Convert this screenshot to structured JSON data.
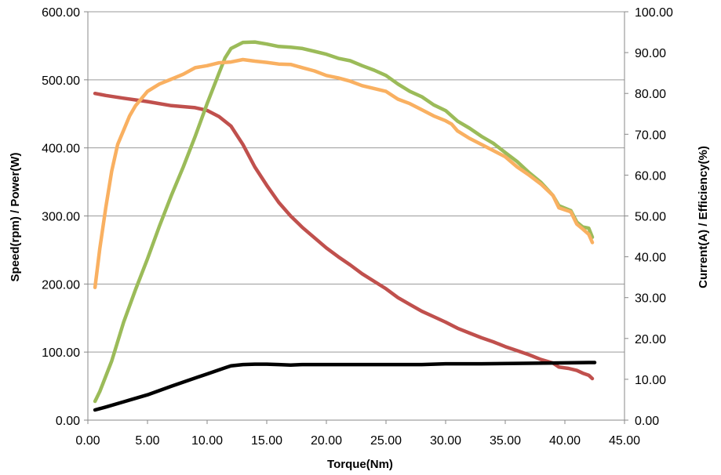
{
  "chart_data": {
    "type": "line",
    "xlabel": "Torque(Nm)",
    "ylabel_left": "Speed(rpm) / Power(W)",
    "ylabel_right": "Current(A) / Efficiency(%)",
    "xlim": [
      0,
      45
    ],
    "ylim_left": [
      0,
      600
    ],
    "ylim_right": [
      0,
      100
    ],
    "x_ticks": [
      "0.00",
      "5.00",
      "10.00",
      "15.00",
      "20.00",
      "25.00",
      "30.00",
      "35.00",
      "40.00",
      "45.00"
    ],
    "y_left_ticks": [
      "0.00",
      "100.00",
      "200.00",
      "300.00",
      "400.00",
      "500.00",
      "600.00"
    ],
    "y_right_ticks": [
      "0.00",
      "10.00",
      "20.00",
      "30.00",
      "40.00",
      "50.00",
      "60.00",
      "70.00",
      "80.00",
      "90.00",
      "100.00"
    ],
    "grid": "horizontal",
    "series": [
      {
        "color": "#c0504d",
        "axis": "left",
        "points": [
          [
            0.6,
            480
          ],
          [
            1.5,
            477
          ],
          [
            3,
            473
          ],
          [
            5,
            468
          ],
          [
            7,
            462
          ],
          [
            9,
            459
          ],
          [
            10,
            455
          ],
          [
            11,
            446
          ],
          [
            12,
            432
          ],
          [
            13,
            405
          ],
          [
            14,
            372
          ],
          [
            15,
            345
          ],
          [
            16,
            320
          ],
          [
            17,
            300
          ],
          [
            18,
            283
          ],
          [
            19,
            268
          ],
          [
            20,
            253
          ],
          [
            21,
            240
          ],
          [
            22,
            228
          ],
          [
            23,
            215
          ],
          [
            24,
            204
          ],
          [
            25,
            193
          ],
          [
            26,
            180
          ],
          [
            27,
            170
          ],
          [
            28,
            160
          ],
          [
            29,
            152
          ],
          [
            30,
            144
          ],
          [
            31,
            135
          ],
          [
            32,
            128
          ],
          [
            33,
            121
          ],
          [
            34,
            115
          ],
          [
            35,
            108
          ],
          [
            36,
            102
          ],
          [
            37,
            96
          ],
          [
            38,
            89
          ],
          [
            39,
            84
          ],
          [
            39.5,
            78
          ],
          [
            40.3,
            76
          ],
          [
            41,
            73
          ],
          [
            41.5,
            69
          ],
          [
            42,
            66
          ],
          [
            42.3,
            61
          ]
        ]
      },
      {
        "color": "#9bbb59",
        "axis": "right",
        "points": [
          [
            0.6,
            4.6
          ],
          [
            1,
            7
          ],
          [
            2,
            14.5
          ],
          [
            3,
            24
          ],
          [
            4,
            32
          ],
          [
            5,
            39.5
          ],
          [
            6,
            47.5
          ],
          [
            7,
            55
          ],
          [
            8,
            62
          ],
          [
            9,
            69.5
          ],
          [
            10,
            77.5
          ],
          [
            11,
            85
          ],
          [
            11.5,
            88.7
          ],
          [
            12,
            91
          ],
          [
            13,
            92.5
          ],
          [
            14,
            92.6
          ],
          [
            15,
            92.1
          ],
          [
            16,
            91.5
          ],
          [
            17,
            91.3
          ],
          [
            18,
            91
          ],
          [
            19,
            90.3
          ],
          [
            20,
            89.6
          ],
          [
            21,
            88.6
          ],
          [
            22,
            88
          ],
          [
            23,
            86.8
          ],
          [
            24,
            85.7
          ],
          [
            25,
            84.4
          ],
          [
            26,
            82.3
          ],
          [
            27,
            80.5
          ],
          [
            28,
            79.2
          ],
          [
            29,
            77.2
          ],
          [
            30,
            75.8
          ],
          [
            31,
            73.2
          ],
          [
            32,
            71.5
          ],
          [
            33,
            69.5
          ],
          [
            34,
            67.8
          ],
          [
            35,
            65.5
          ],
          [
            36,
            63.3
          ],
          [
            37,
            60.6
          ],
          [
            38,
            58.2
          ],
          [
            39,
            55
          ],
          [
            39.5,
            52.5
          ],
          [
            40.5,
            51.3
          ],
          [
            41,
            48.5
          ],
          [
            41.5,
            47.3
          ],
          [
            42,
            47
          ],
          [
            42.3,
            44.8
          ]
        ]
      },
      {
        "color": "#f9b061",
        "axis": "right",
        "points": [
          [
            0.6,
            32.5
          ],
          [
            1,
            42
          ],
          [
            1.5,
            52
          ],
          [
            2,
            61
          ],
          [
            2.5,
            67.5
          ],
          [
            3,
            71
          ],
          [
            3.5,
            74.5
          ],
          [
            4,
            77
          ],
          [
            5,
            80.5
          ],
          [
            6,
            82.3
          ],
          [
            7,
            83.5
          ],
          [
            8,
            84.7
          ],
          [
            9,
            86.3
          ],
          [
            10,
            86.8
          ],
          [
            11,
            87.5
          ],
          [
            12,
            87.7
          ],
          [
            13,
            88.3
          ],
          [
            14,
            87.9
          ],
          [
            15,
            87.6
          ],
          [
            16,
            87.2
          ],
          [
            17,
            87.1
          ],
          [
            18,
            86.3
          ],
          [
            19,
            85.5
          ],
          [
            20,
            84.4
          ],
          [
            21,
            83.8
          ],
          [
            22,
            83
          ],
          [
            23,
            81.9
          ],
          [
            24,
            81.2
          ],
          [
            25,
            80.5
          ],
          [
            26,
            78.6
          ],
          [
            27,
            77.5
          ],
          [
            28,
            76
          ],
          [
            29,
            74.5
          ],
          [
            30,
            73.3
          ],
          [
            30.5,
            72.5
          ],
          [
            31,
            70.8
          ],
          [
            32,
            69
          ],
          [
            33,
            67.5
          ],
          [
            34,
            66
          ],
          [
            35,
            64.5
          ],
          [
            36,
            62
          ],
          [
            37,
            60
          ],
          [
            38,
            57.8
          ],
          [
            39,
            55
          ],
          [
            39.5,
            52
          ],
          [
            40.5,
            51
          ],
          [
            41,
            48
          ],
          [
            41.5,
            46.8
          ],
          [
            42,
            45.5
          ],
          [
            42.3,
            43.5
          ]
        ]
      },
      {
        "color": "#000000",
        "axis": "right",
        "points": [
          [
            0.6,
            2.5
          ],
          [
            1.5,
            3.2
          ],
          [
            3,
            4.5
          ],
          [
            5,
            6.2
          ],
          [
            7,
            8.3
          ],
          [
            9,
            10.3
          ],
          [
            10,
            11.3
          ],
          [
            11,
            12.3
          ],
          [
            11.5,
            12.8
          ],
          [
            12,
            13.3
          ],
          [
            13,
            13.6
          ],
          [
            14,
            13.7
          ],
          [
            15,
            13.7
          ],
          [
            16,
            13.6
          ],
          [
            17,
            13.5
          ],
          [
            18,
            13.6
          ],
          [
            20,
            13.6
          ],
          [
            22,
            13.6
          ],
          [
            25,
            13.6
          ],
          [
            28,
            13.6
          ],
          [
            30,
            13.8
          ],
          [
            33,
            13.8
          ],
          [
            36,
            13.9
          ],
          [
            39,
            14
          ],
          [
            42,
            14.1
          ],
          [
            42.5,
            14.1
          ]
        ]
      }
    ]
  }
}
